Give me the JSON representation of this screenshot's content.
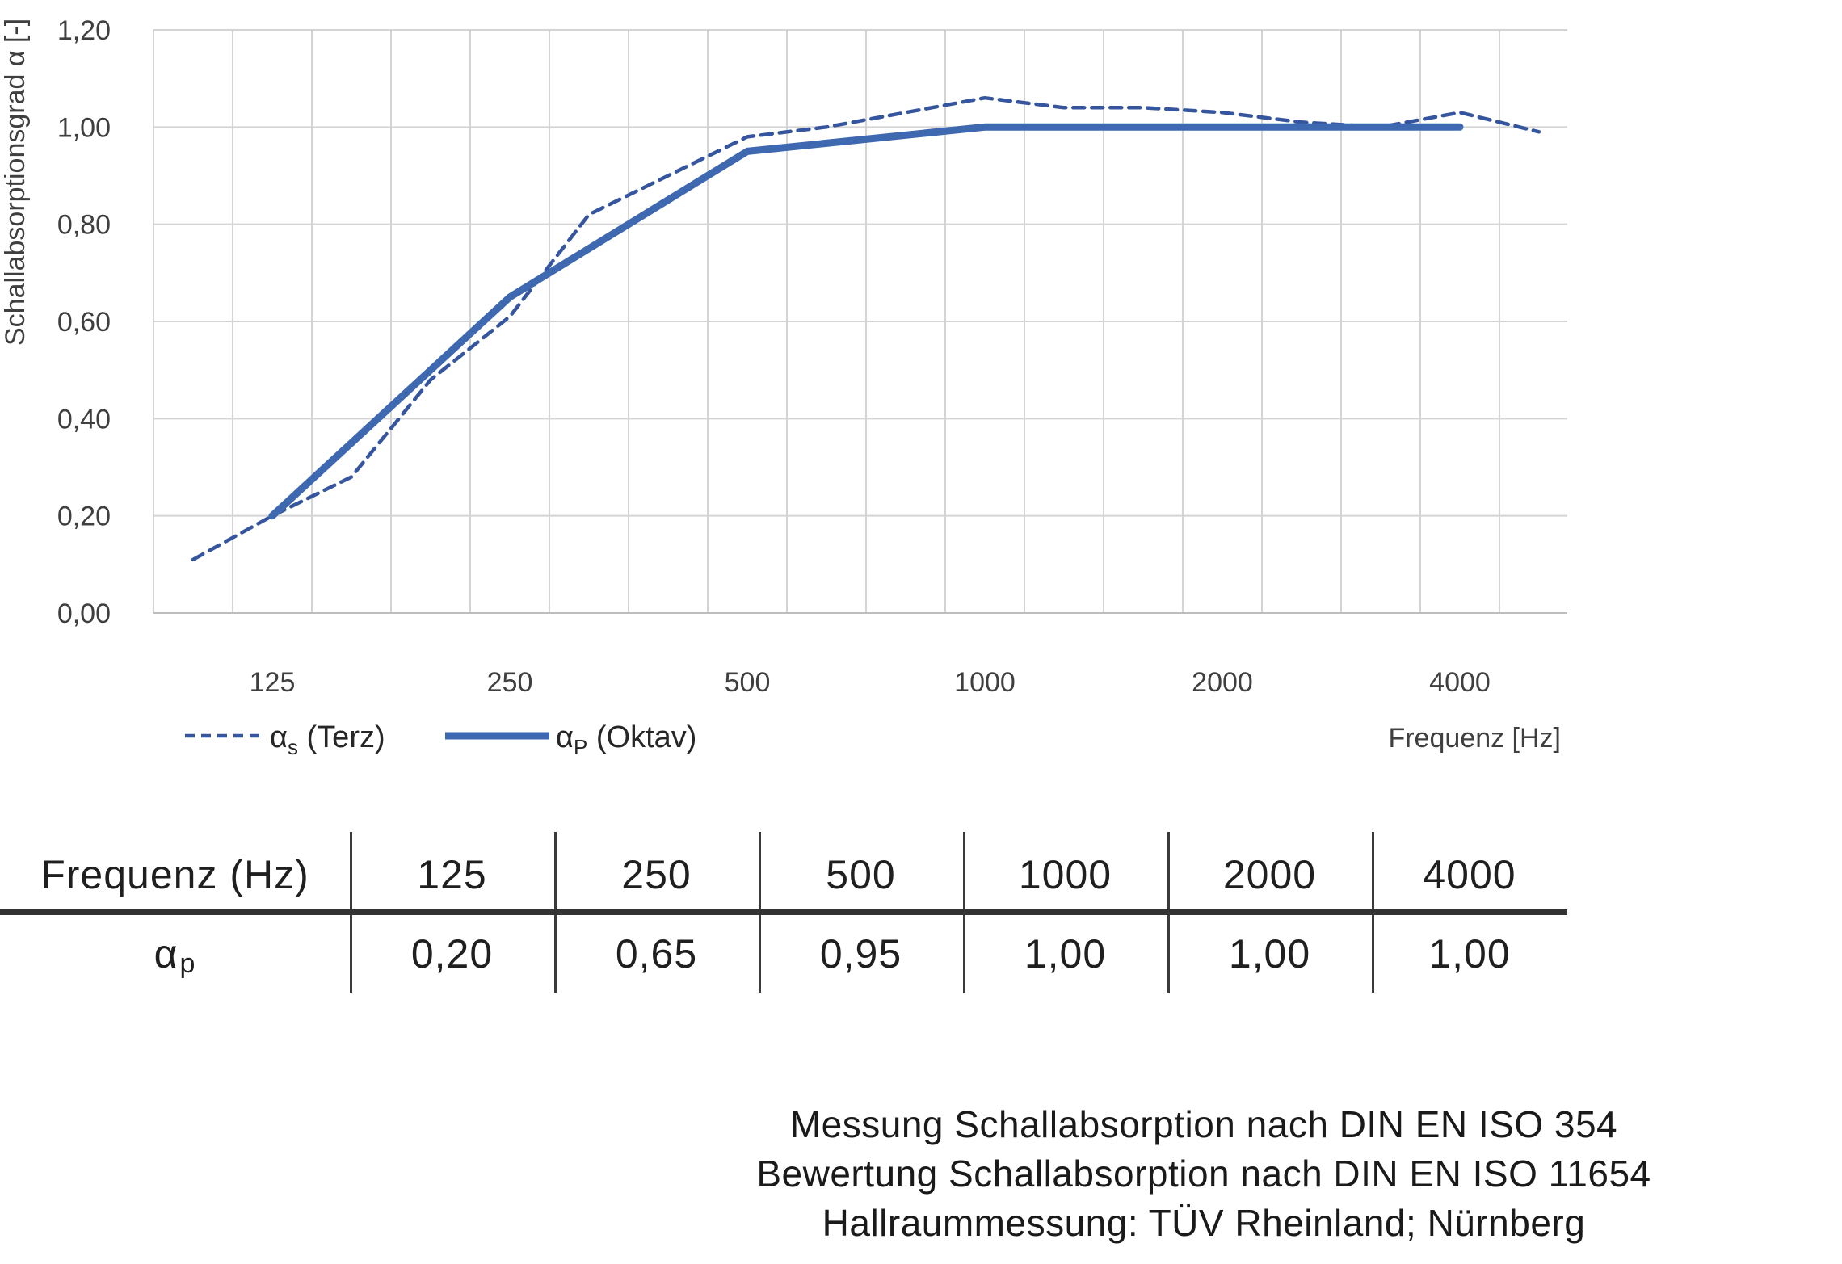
{
  "chart_data": {
    "type": "line",
    "title": "",
    "ylabel": "Schallabsorptionsgrad α [-]",
    "xlabel": "Frequenz [Hz]",
    "ylim": [
      0,
      1.2
    ],
    "y_tick_step": 0.2,
    "y_tick_labels": [
      "0,00",
      "0,20",
      "0,40",
      "0,60",
      "0,80",
      "1,00",
      "1,20"
    ],
    "grid": true,
    "legend_position": "bottom-left",
    "categories": [
      100,
      125,
      160,
      200,
      250,
      315,
      400,
      500,
      630,
      800,
      1000,
      1250,
      1600,
      2000,
      2500,
      3150,
      4000,
      5000
    ],
    "x_axis_labels": [
      {
        "freq": 125,
        "label": "125"
      },
      {
        "freq": 250,
        "label": "250"
      },
      {
        "freq": 500,
        "label": "500"
      },
      {
        "freq": 1000,
        "label": "1000"
      },
      {
        "freq": 2000,
        "label": "2000"
      },
      {
        "freq": 4000,
        "label": "4000"
      }
    ],
    "series": [
      {
        "name_base": "α",
        "name_sub": "s",
        "name_rest": " (Terz)",
        "style": "dashed",
        "color": "#35569E",
        "width": 4.5,
        "x": [
          100,
          125,
          160,
          200,
          250,
          315,
          400,
          500,
          630,
          800,
          1000,
          1250,
          1600,
          2000,
          2500,
          3150,
          4000,
          5000
        ],
        "values": [
          0.11,
          0.2,
          0.28,
          0.48,
          0.61,
          0.82,
          0.9,
          0.98,
          1.0,
          1.03,
          1.06,
          1.04,
          1.04,
          1.03,
          1.01,
          1.0,
          1.03,
          0.99
        ]
      },
      {
        "name_base": "α",
        "name_sub": "P",
        "name_rest": " (Oktav)",
        "style": "solid",
        "color": "#3E68B0",
        "width": 9,
        "x": [
          125,
          250,
          500,
          1000,
          2000,
          4000
        ],
        "values": [
          0.2,
          0.65,
          0.95,
          1.0,
          1.0,
          1.0
        ]
      }
    ],
    "colors": {
      "gridline": "#d4d4d4",
      "axis_line": "#bdbdbd",
      "tick_text": "#3f3f3f",
      "legend_text": "#262626"
    }
  },
  "table": {
    "header": [
      "Frequenz (Hz)",
      "125",
      "250",
      "500",
      "1000",
      "2000",
      "4000"
    ],
    "row_label_base": "α",
    "row_label_sub": "p",
    "row_values": [
      "0,20",
      "0,65",
      "0,95",
      "1,00",
      "1,00",
      "1,00"
    ]
  },
  "footer": {
    "lines": [
      "Messung Schallabsorption nach DIN EN ISO 354",
      "Bewertung Schallabsorption nach DIN EN ISO 11654",
      "Hallraummessung: TÜV Rheinland; Nürnberg"
    ]
  }
}
